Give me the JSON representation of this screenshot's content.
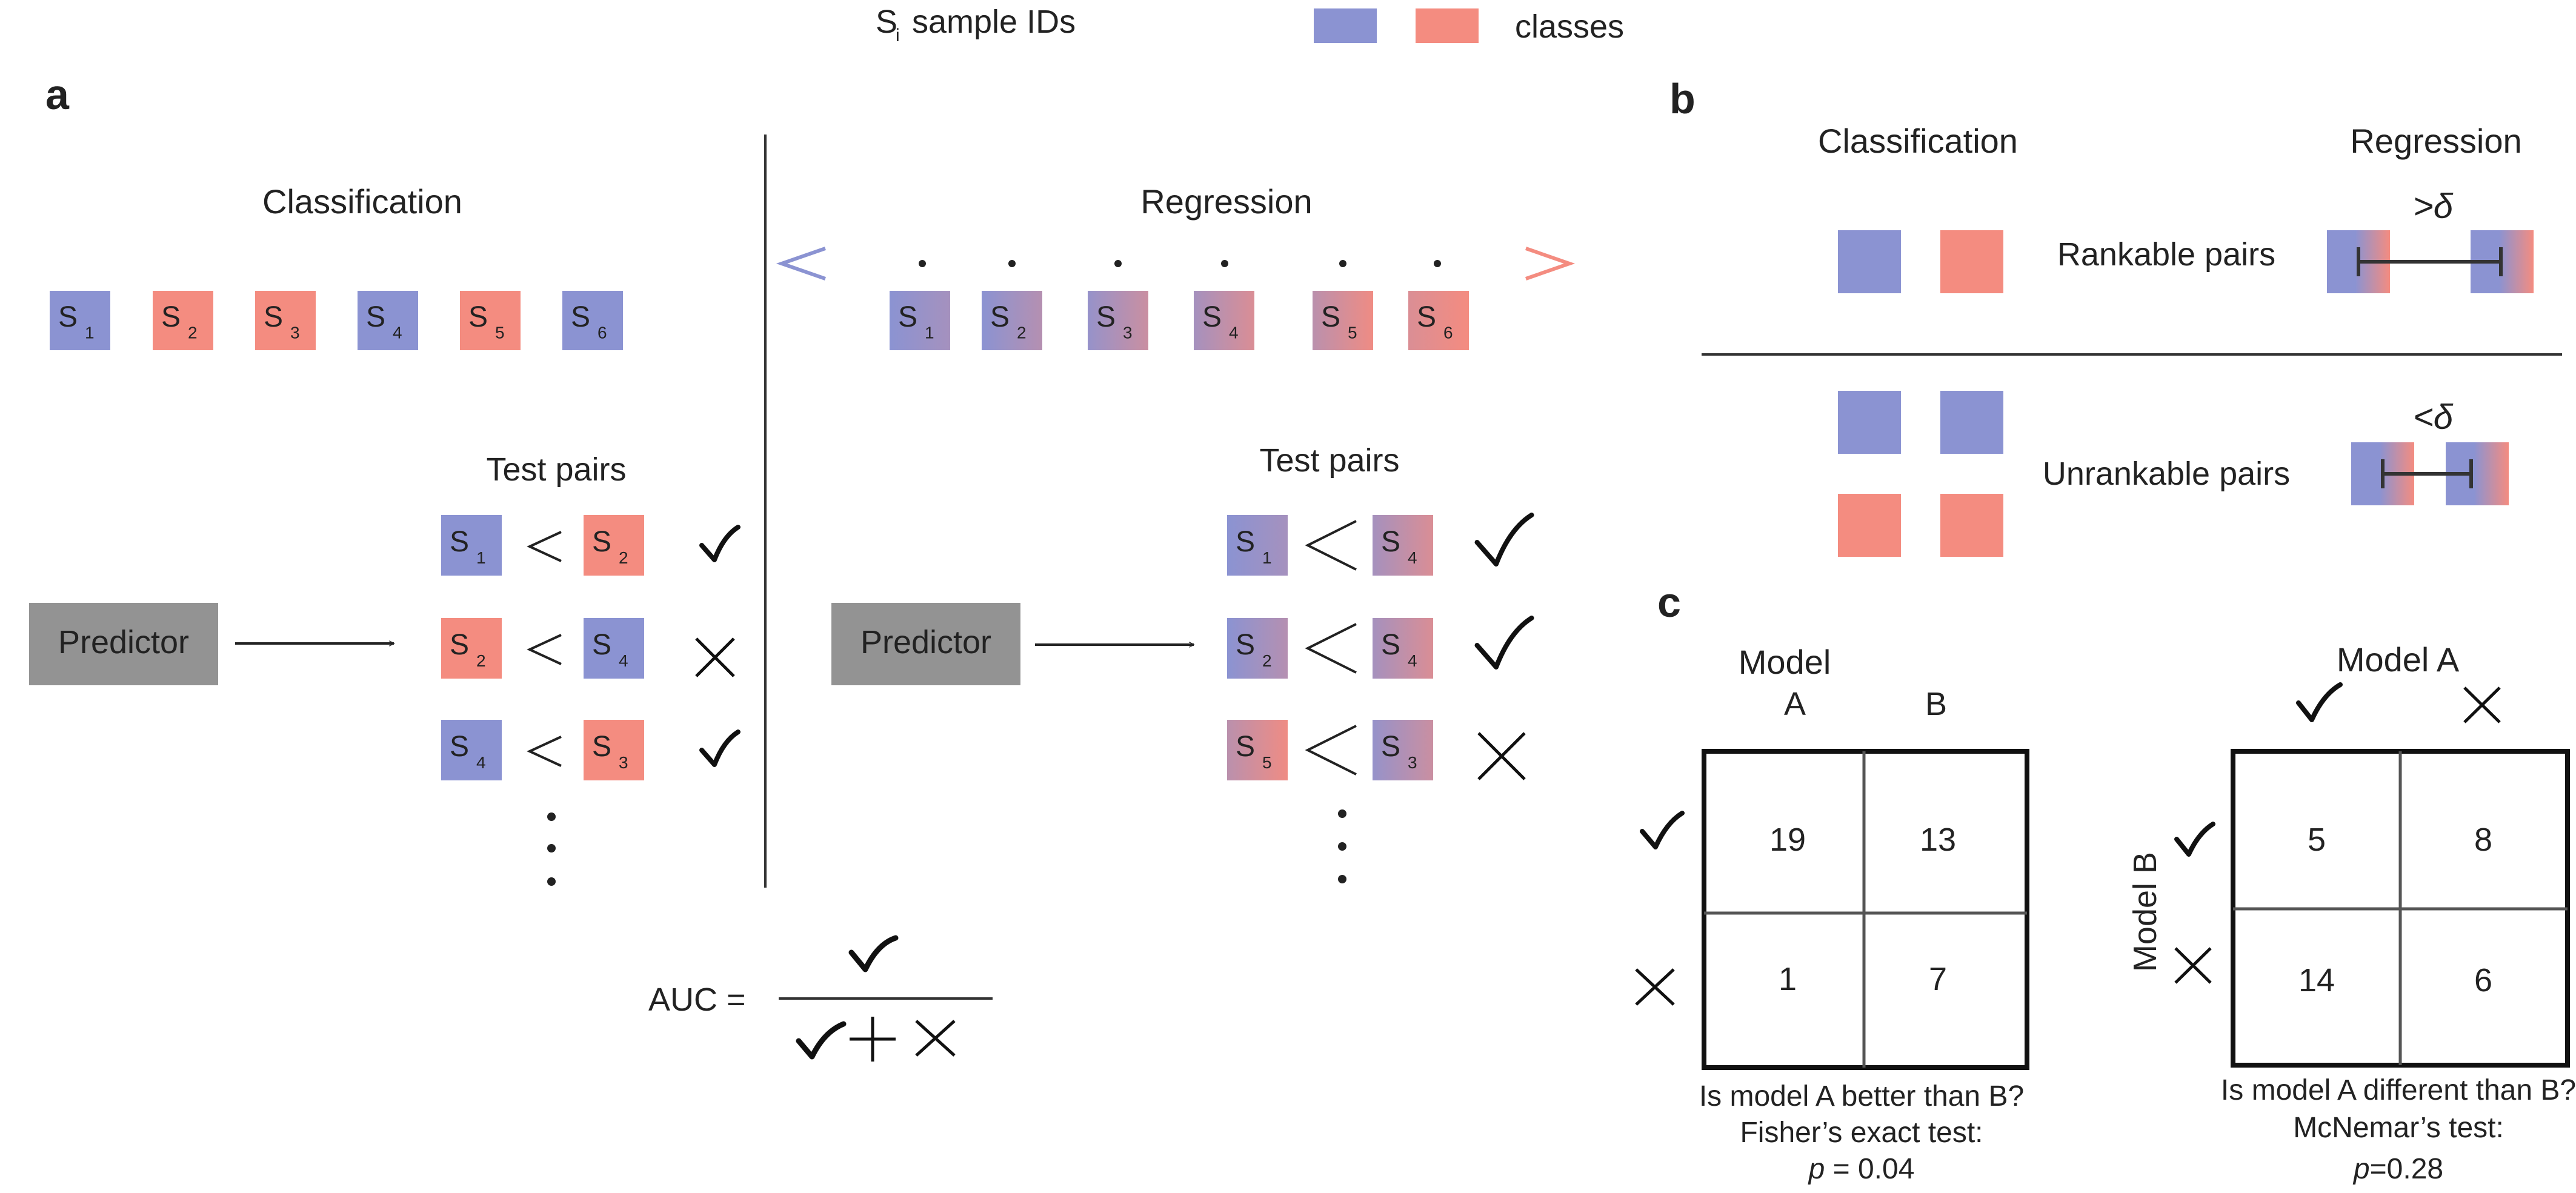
{
  "colors": {
    "blue": "#8b93d2",
    "red": "#f48c80",
    "gray_box": "#939393",
    "line": "#333333",
    "text": "#222222"
  },
  "legend": {
    "sample_ids": "S",
    "sample_ids_sub": "i",
    "sample_ids_label": "sample IDs",
    "classes_label": "classes"
  },
  "panel_a": {
    "letter": "a",
    "classification": {
      "title": "Classification",
      "samples": [
        {
          "label": "S",
          "sub": "1",
          "color": "blue"
        },
        {
          "label": "S",
          "sub": "2",
          "color": "red"
        },
        {
          "label": "S",
          "sub": "3",
          "color": "red"
        },
        {
          "label": "S",
          "sub": "4",
          "color": "blue"
        },
        {
          "label": "S",
          "sub": "5",
          "color": "red"
        },
        {
          "label": "S",
          "sub": "6",
          "color": "blue"
        }
      ],
      "test_pairs_title": "Test pairs",
      "predictor": "Predictor",
      "pairs": [
        {
          "left": {
            "sub": "1",
            "color": "blue"
          },
          "right": {
            "sub": "2",
            "color": "red"
          },
          "result": "check"
        },
        {
          "left": {
            "sub": "2",
            "color": "red"
          },
          "right": {
            "sub": "4",
            "color": "blue"
          },
          "result": "cross"
        },
        {
          "left": {
            "sub": "4",
            "color": "blue"
          },
          "right": {
            "sub": "3",
            "color": "red"
          },
          "result": "check"
        }
      ],
      "less_than": "<"
    },
    "regression": {
      "title": "Regression",
      "samples": [
        {
          "label": "S",
          "sub": "1",
          "blend": 0.0
        },
        {
          "label": "S",
          "sub": "2",
          "blend": 0.15
        },
        {
          "label": "S",
          "sub": "3",
          "blend": 0.35
        },
        {
          "label": "S",
          "sub": "4",
          "blend": 0.5
        },
        {
          "label": "S",
          "sub": "5",
          "blend": 0.7
        },
        {
          "label": "S",
          "sub": "6",
          "blend": 1.0
        }
      ],
      "test_pairs_title": "Test pairs",
      "predictor": "Predictor",
      "pairs": [
        {
          "left": {
            "sub": "1"
          },
          "right": {
            "sub": "4"
          },
          "result": "check"
        },
        {
          "left": {
            "sub": "2"
          },
          "right": {
            "sub": "4"
          },
          "result": "check"
        },
        {
          "left": {
            "sub": "5"
          },
          "right": {
            "sub": "3"
          },
          "result": "cross"
        }
      ]
    },
    "auc": {
      "label": "AUC ="
    }
  },
  "panel_b": {
    "letter": "b",
    "classification_title": "Classification",
    "regression_title": "Regression",
    "rankable_label": "Rankable pairs",
    "unrankable_label": "Unrankable pairs",
    "greater_delta": ">δ",
    "less_delta": "<δ"
  },
  "panel_c": {
    "letter": "c",
    "fisher": {
      "top_title": "Model",
      "col_labels": [
        "A",
        "B"
      ],
      "cells": [
        [
          "19",
          "13"
        ],
        [
          "1",
          "7"
        ]
      ],
      "question": "Is model A better than B?",
      "test": "Fisher’s exact test:",
      "p_label": "p",
      "p_value": " = 0.04"
    },
    "mcnemar": {
      "top_title": "Model A",
      "side_title": "Model B",
      "cells": [
        [
          "5",
          "8"
        ],
        [
          "14",
          "6"
        ]
      ],
      "question": "Is model A different than B?",
      "test": "McNemar’s test:",
      "p_label": "p",
      "p_value": "=0.28"
    }
  }
}
